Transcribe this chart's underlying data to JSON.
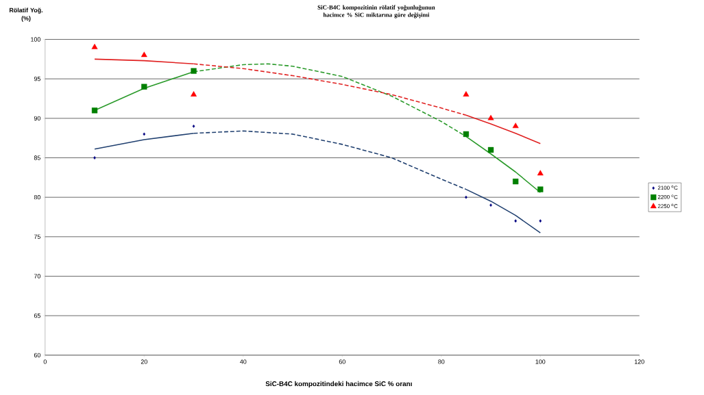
{
  "chart_data": {
    "type": "scatter",
    "title": "SiC-B4C kompozitinin rölatif yoğunluğunun\nhacimce % SiC miktarına göre değişimi",
    "xlabel": "SiC-B4C kompozitindeki hacimce SiC % oranı",
    "ylabel": "Rölatif Yoğ.\n(%)",
    "xlim": [
      0,
      120
    ],
    "xticks": [
      0,
      20,
      40,
      60,
      80,
      100,
      120
    ],
    "ylim": [
      60,
      100
    ],
    "yticks": [
      60,
      65,
      70,
      75,
      80,
      85,
      90,
      95,
      100
    ],
    "grid": "y",
    "legend": "right",
    "series": [
      {
        "name": "2100 $^{o}$C",
        "marker": "diamond",
        "color": "#000080",
        "x": [
          10,
          20,
          30,
          85,
          90,
          95,
          100
        ],
        "values": [
          85,
          88,
          89,
          80,
          79,
          77,
          77
        ]
      },
      {
        "name": "2200 $^{o}$C",
        "marker": "square",
        "color": "#008000",
        "x": [
          10,
          20,
          30,
          85,
          90,
          95,
          100
        ],
        "values": [
          91,
          94,
          96,
          88,
          86,
          82,
          81
        ]
      },
      {
        "name": "2250 $^{o}$C",
        "marker": "triangle",
        "color": "#ff0000",
        "x": [
          10,
          20,
          30,
          85,
          90,
          95,
          100
        ],
        "values": [
          99,
          98,
          93,
          93,
          90,
          89,
          83
        ]
      },
      {
        "type": "line",
        "line_style": "solid",
        "color": "#1f3f6f",
        "x": [
          10,
          20,
          30
        ],
        "values": [
          86.1,
          87.3,
          88.1
        ]
      },
      {
        "type": "line",
        "line_style": "dashed",
        "color": "#1f3f6f",
        "x": [
          30,
          40,
          50,
          60,
          70,
          80,
          85
        ],
        "values": [
          88.1,
          88.4,
          88.0,
          86.7,
          85.0,
          82.3,
          81.0
        ]
      },
      {
        "type": "line",
        "line_style": "solid",
        "color": "#1f3f6f",
        "x": [
          85,
          90,
          95,
          100
        ],
        "values": [
          81.0,
          79.5,
          77.7,
          75.5
        ]
      },
      {
        "type": "line",
        "line_style": "solid",
        "color": "#2a9a2a",
        "x": [
          10,
          20,
          30
        ],
        "values": [
          91.0,
          93.8,
          95.9
        ]
      },
      {
        "type": "line",
        "line_style": "dashed",
        "color": "#2a9a2a",
        "x": [
          30,
          40,
          45,
          50,
          60,
          70,
          80,
          85
        ],
        "values": [
          95.9,
          96.8,
          96.9,
          96.6,
          95.3,
          92.8,
          89.6,
          87.7
        ]
      },
      {
        "type": "line",
        "line_style": "solid",
        "color": "#2a9a2a",
        "x": [
          85,
          90,
          95,
          100
        ],
        "values": [
          87.7,
          85.5,
          83.2,
          80.6
        ]
      },
      {
        "type": "line",
        "line_style": "solid",
        "color": "#e02020",
        "x": [
          10,
          20,
          30
        ],
        "values": [
          97.5,
          97.3,
          96.9
        ]
      },
      {
        "type": "line",
        "line_style": "dashed",
        "color": "#e02020",
        "x": [
          30,
          40,
          50,
          60,
          70,
          80,
          85
        ],
        "values": [
          96.9,
          96.3,
          95.4,
          94.3,
          93.0,
          91.3,
          90.4
        ]
      },
      {
        "type": "line",
        "line_style": "solid",
        "color": "#e02020",
        "x": [
          85,
          90,
          95,
          100
        ],
        "values": [
          90.4,
          89.3,
          88.1,
          86.8
        ]
      }
    ]
  }
}
